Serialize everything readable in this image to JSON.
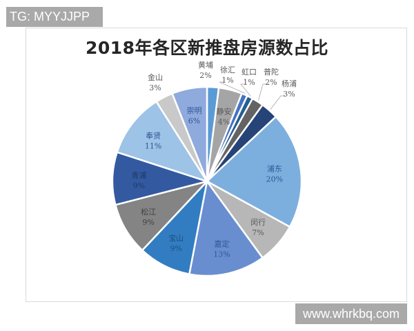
{
  "watermarks": {
    "top_left": "TG: MYYJJPP",
    "bottom_right": "www.whrkbq.com"
  },
  "chart_data": {
    "type": "pie",
    "title": "2018年各区新推盘房源数占比",
    "categories": [
      "黄埔",
      "静安",
      "徐汇",
      "虹口",
      "普陀",
      "杨浦",
      "浦东",
      "闵行",
      "嘉定",
      "宝山",
      "松江",
      "青浦",
      "奉贤",
      "金山",
      "崇明"
    ],
    "values": [
      2,
      4,
      1,
      1,
      2,
      3,
      20,
      7,
      13,
      9,
      9,
      9,
      11,
      3,
      6
    ],
    "labels": [
      "2%",
      "4%",
      "1%",
      "1%",
      "2%",
      "3%",
      "20%",
      "7%",
      "13%",
      "9%",
      "9%",
      "9%",
      "11%",
      "3%",
      "6%"
    ],
    "colors": [
      "#5b9bd5",
      "#a5a5a5",
      "#4472c4",
      "#255e91",
      "#636363",
      "#264478",
      "#7cafdd",
      "#b7b7b7",
      "#698ed0",
      "#327dc2",
      "#848484",
      "#335aa1",
      "#9dc3e6",
      "#c9c9c9",
      "#8faadc"
    ],
    "start_angle_deg": 0,
    "direction": "clockwise",
    "legend": "none",
    "data_labels": "category and percentage"
  }
}
